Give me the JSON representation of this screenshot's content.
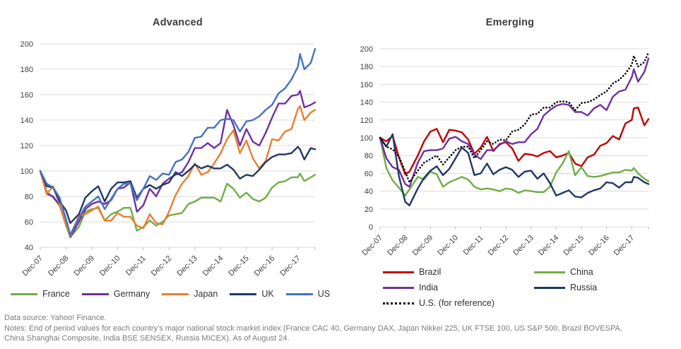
{
  "footer": {
    "source": "Data source: Yahoo! Finance.",
    "notes_line1": "Notes: End of period values for each country’s major national stock market index (France CAC 40, Germany DAX, Japan Nikkei 225, UK FTSE 100, US S&P 500, Brazil BOVESPA,",
    "notes_line2": "China Shanghai Composite, India BSE SENSEX, Russia MICEX). As of August 24."
  },
  "style_colors": {
    "gridline": "#D9D9D9",
    "tick_mark": "#BFBFBF",
    "axis_text": "#3F3F3F",
    "title_text": "#3F3F3F",
    "footer_text": "#7B7B7B",
    "background": "#FFFFFF"
  },
  "chart_data": [
    {
      "type": "line",
      "title": "Advanced",
      "xlabel": "",
      "ylabel": "",
      "ylim": [
        40,
        200
      ],
      "y_ticks": [
        200,
        180,
        160,
        140,
        120,
        100,
        80,
        60,
        40
      ],
      "grid": "horizontal",
      "legend_position": "bottom",
      "x_tick_labels": [
        "Dec-07",
        "Dec-08",
        "Dec-09",
        "Dec-10",
        "Dec-11",
        "Dec-12",
        "Dec-13",
        "Dec-14",
        "Dec-15",
        "Dec-16",
        "Dec-17"
      ],
      "x_tick_months": [
        0,
        12,
        24,
        36,
        48,
        60,
        72,
        84,
        96,
        108,
        120
      ],
      "months_since_dec07": [
        0,
        3,
        6,
        9,
        12,
        14,
        18,
        21,
        24,
        27,
        30,
        33,
        36,
        39,
        42,
        45,
        48,
        51,
        54,
        57,
        60,
        63,
        66,
        69,
        72,
        75,
        78,
        81,
        84,
        87,
        90,
        93,
        96,
        99,
        102,
        105,
        108,
        111,
        114,
        117,
        120,
        121,
        123,
        126,
        128
      ],
      "index_base": "Dec-07 = 100",
      "series": [
        {
          "name": "France",
          "color": "#70AD47",
          "dash": false,
          "values": [
            100,
            84,
            79,
            73,
            57,
            48,
            56,
            68,
            70,
            71,
            61,
            66,
            68,
            71,
            71,
            53,
            56,
            61,
            57,
            60,
            65,
            66,
            67,
            74,
            76,
            79,
            79,
            79,
            76,
            90,
            86,
            79,
            83,
            78,
            76,
            79,
            87,
            91,
            92,
            95,
            95,
            98,
            92,
            95,
            97
          ]
        },
        {
          "name": "Germany",
          "color": "#7030A0",
          "dash": false,
          "values": [
            100,
            82,
            80,
            73,
            60,
            48,
            60,
            70,
            74,
            76,
            74,
            77,
            86,
            87,
            91,
            68,
            73,
            86,
            80,
            90,
            94,
            97,
            99,
            107,
            118,
            118,
            122,
            118,
            122,
            148,
            136,
            120,
            133,
            123,
            120,
            130,
            142,
            153,
            153,
            159,
            160,
            163,
            150,
            152,
            154
          ]
        },
        {
          "name": "Japan",
          "color": "#ED7D31",
          "dash": false,
          "values": [
            100,
            82,
            88,
            74,
            58,
            49,
            65,
            66,
            69,
            72,
            61,
            61,
            67,
            64,
            64,
            57,
            55,
            66,
            59,
            58,
            68,
            81,
            90,
            96,
            106,
            97,
            99,
            106,
            114,
            125,
            132,
            114,
            124,
            110,
            102,
            108,
            125,
            124,
            131,
            133,
            149,
            151,
            140,
            146,
            148
          ]
        },
        {
          "name": "UK",
          "color": "#1F3864",
          "dash": false,
          "values": [
            100,
            88,
            87,
            76,
            69,
            59,
            66,
            79,
            84,
            88,
            76,
            86,
            91,
            91,
            92,
            79,
            86,
            89,
            86,
            89,
            91,
            99,
            96,
            100,
            105,
            102,
            104,
            102,
            102,
            105,
            101,
            94,
            97,
            96,
            101,
            107,
            111,
            113,
            113,
            114,
            119,
            117,
            109,
            118,
            117
          ]
        },
        {
          "name": "US",
          "color": "#4472C4",
          "dash": false,
          "values": [
            100,
            90,
            87,
            79,
            62,
            50,
            63,
            72,
            76,
            80,
            70,
            78,
            86,
            90,
            90,
            77,
            86,
            96,
            93,
            98,
            97,
            107,
            109,
            115,
            126,
            127,
            134,
            134,
            140,
            141,
            140,
            131,
            139,
            140,
            143,
            148,
            152,
            161,
            165,
            172,
            182,
            192,
            180,
            185,
            196
          ]
        }
      ]
    },
    {
      "type": "line",
      "title": "Emerging",
      "xlabel": "",
      "ylabel": "",
      "ylim": [
        0,
        200
      ],
      "y_ticks": [
        200,
        180,
        160,
        140,
        120,
        100,
        80,
        60,
        40,
        20,
        0
      ],
      "grid": "horizontal",
      "legend_position": "bottom",
      "x_tick_labels": [
        "Dec-07",
        "Dec-08",
        "Dec-09",
        "Dec-10",
        "Dec-11",
        "Dec-12",
        "Dec-13",
        "Dec-14",
        "Dec-15",
        "Dec-16",
        "Dec-17"
      ],
      "x_tick_months": [
        0,
        12,
        24,
        36,
        48,
        60,
        72,
        84,
        96,
        108,
        120
      ],
      "months_since_dec07": [
        0,
        3,
        6,
        9,
        12,
        14,
        18,
        21,
        24,
        27,
        30,
        33,
        36,
        39,
        42,
        45,
        48,
        51,
        54,
        57,
        60,
        63,
        66,
        69,
        72,
        75,
        78,
        81,
        84,
        87,
        90,
        93,
        96,
        99,
        102,
        105,
        108,
        111,
        114,
        117,
        120,
        121,
        123,
        126,
        128
      ],
      "index_base": "Dec-07 = 100",
      "series": [
        {
          "name": "Brazil",
          "color": "#C00000",
          "dash": false,
          "values": [
            100,
            96,
            102,
            78,
            59,
            62,
            80,
            96,
            107,
            110,
            95,
            109,
            108,
            106,
            98,
            82,
            89,
            101,
            85,
            93,
            95,
            88,
            74,
            82,
            81,
            79,
            83,
            85,
            78,
            80,
            83,
            71,
            68,
            78,
            81,
            91,
            94,
            102,
            98,
            116,
            120,
            133,
            134,
            114,
            121
          ]
        },
        {
          "name": "China",
          "color": "#70AD47",
          "dash": false,
          "values": [
            100,
            66,
            52,
            44,
            35,
            42,
            56,
            53,
            62,
            59,
            45,
            50,
            53,
            56,
            53,
            45,
            42,
            43,
            42,
            40,
            43,
            42,
            38,
            41,
            40,
            39,
            39,
            45,
            61,
            71,
            85,
            58,
            67,
            57,
            56,
            57,
            59,
            61,
            61,
            64,
            63,
            66,
            60,
            54,
            51
          ]
        },
        {
          "name": "India",
          "color": "#7030A0",
          "dash": false,
          "values": [
            100,
            77,
            67,
            64,
            48,
            45,
            72,
            85,
            86,
            86,
            88,
            99,
            101,
            96,
            93,
            81,
            76,
            86,
            86,
            92,
            96,
            93,
            95,
            95,
            104,
            110,
            125,
            131,
            136,
            138,
            137,
            129,
            129,
            125,
            133,
            137,
            131,
            146,
            152,
            154,
            168,
            177,
            163,
            174,
            189
          ]
        },
        {
          "name": "Russia",
          "color": "#1F3864",
          "dash": false,
          "values": [
            100,
            90,
            104,
            57,
            28,
            24,
            43,
            55,
            63,
            68,
            58,
            65,
            77,
            89,
            83,
            58,
            60,
            71,
            59,
            64,
            67,
            64,
            56,
            62,
            63,
            54,
            60,
            49,
            35,
            38,
            41,
            34,
            33,
            38,
            41,
            43,
            50,
            49,
            44,
            50,
            50,
            56,
            55,
            50,
            48
          ]
        },
        {
          "name": "U.S. (for reference)",
          "color": "#000000",
          "dash": true,
          "values": [
            100,
            90,
            87,
            79,
            62,
            50,
            63,
            72,
            76,
            80,
            70,
            78,
            86,
            90,
            90,
            77,
            86,
            96,
            93,
            98,
            97,
            107,
            109,
            115,
            126,
            127,
            134,
            134,
            140,
            141,
            140,
            131,
            139,
            140,
            143,
            148,
            152,
            161,
            165,
            172,
            182,
            192,
            180,
            185,
            196
          ]
        }
      ]
    }
  ]
}
